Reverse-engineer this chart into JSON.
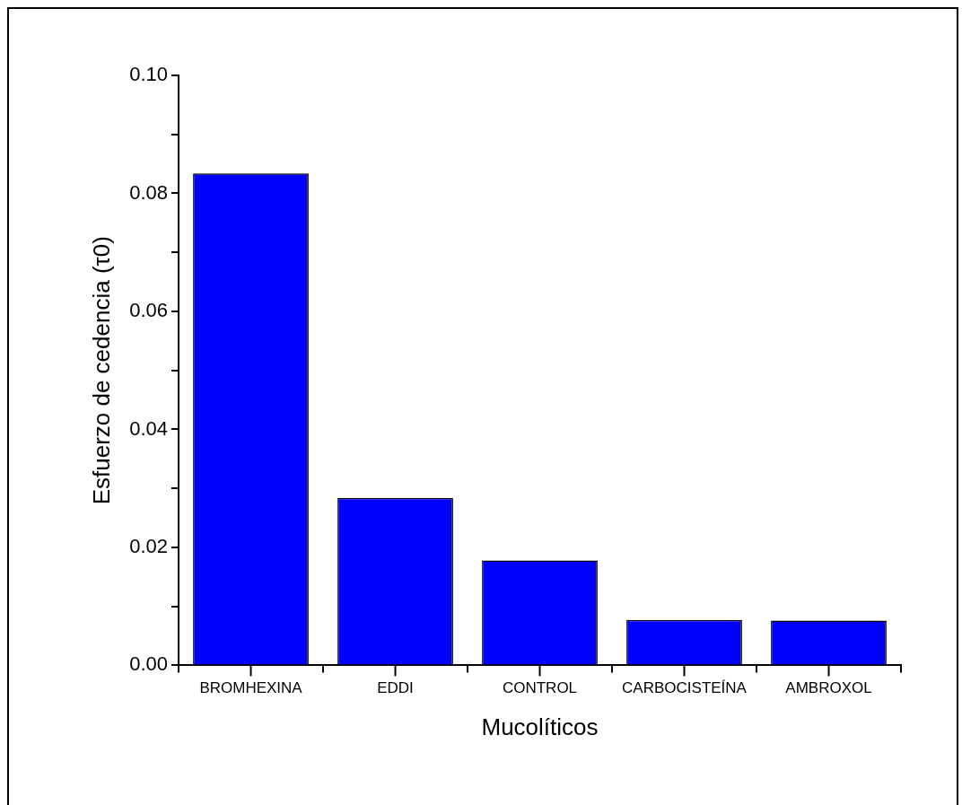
{
  "chart_data": {
    "type": "bar",
    "xlabel": "Mucolíticos",
    "ylabel": "Esfuerzo de cedencia (τ0)",
    "categories": [
      "BROMHEXINA",
      "EDDI",
      "CONTROL",
      "CARBOCISTEÍNA",
      "AMBROXOL"
    ],
    "values": [
      0.0834,
      0.0284,
      0.0178,
      0.0077,
      0.0076
    ],
    "color": "#0000ff",
    "ylim": [
      0,
      0.1
    ],
    "yticks": [
      {
        "value": 0,
        "label": "0.00"
      },
      {
        "value": 0.01,
        "label": null
      },
      {
        "value": 0.02,
        "label": "0.02"
      },
      {
        "value": 0.03,
        "label": null
      },
      {
        "value": 0.04,
        "label": "0.04"
      },
      {
        "value": 0.05,
        "label": null
      },
      {
        "value": 0.06,
        "label": "0.06"
      },
      {
        "value": 0.07,
        "label": null
      },
      {
        "value": 0.08,
        "label": "0.08"
      },
      {
        "value": 0.09,
        "label": null
      },
      {
        "value": 0.1,
        "label": "0.10"
      }
    ],
    "grid": false,
    "legend": false
  }
}
